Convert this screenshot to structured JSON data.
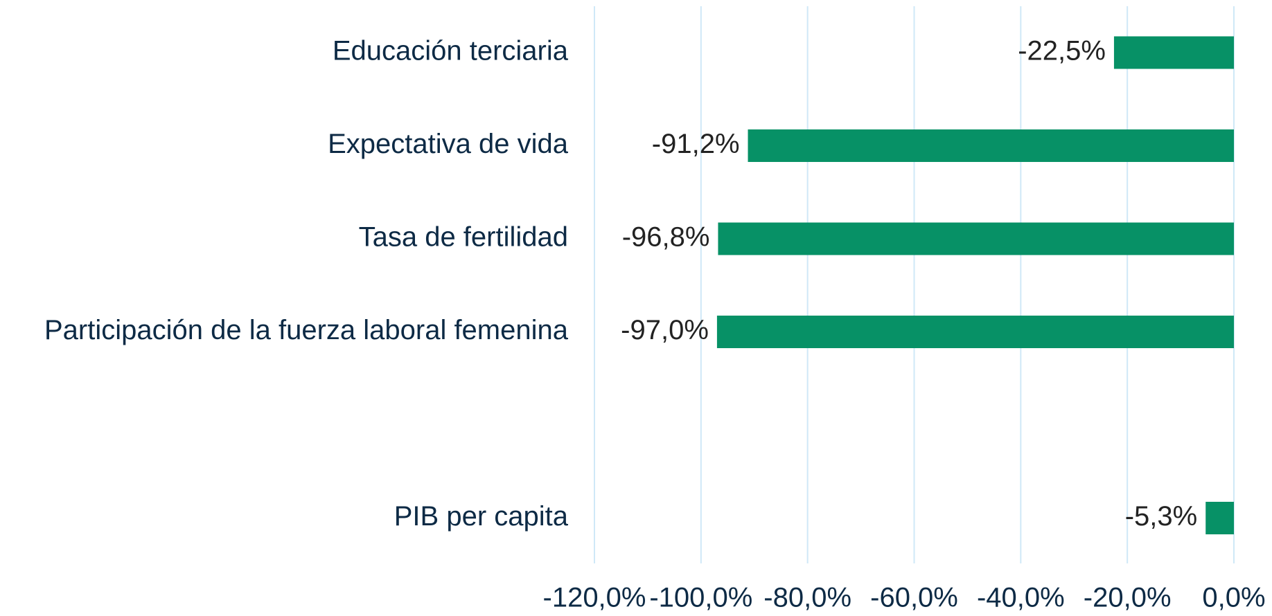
{
  "chart_data": {
    "type": "barh",
    "categories": [
      "Educación terciaria",
      "Expectativa de vida",
      "Tasa de fertilidad",
      "Participación de la fuerza laboral femenina",
      null,
      "PIB per capita"
    ],
    "values": [
      -22.5,
      -91.2,
      -96.8,
      -97.0,
      null,
      -5.3
    ],
    "value_labels": [
      "-22,5%",
      "-91,2%",
      "-96,8%",
      "-97,0%",
      null,
      "-5,3%"
    ],
    "color": "#079166",
    "xlim": [
      -120,
      0
    ],
    "xticks": [
      {
        "value": -120,
        "label": "-120,0%"
      },
      {
        "value": -100,
        "label": "-100,0%"
      },
      {
        "value": -80,
        "label": "-80,0%"
      },
      {
        "value": -60,
        "label": "-60,0%"
      },
      {
        "value": -40,
        "label": "-40,0%"
      },
      {
        "value": -20,
        "label": "-20,0%"
      },
      {
        "value": 0,
        "label": "0,0%"
      }
    ],
    "grid": true
  }
}
